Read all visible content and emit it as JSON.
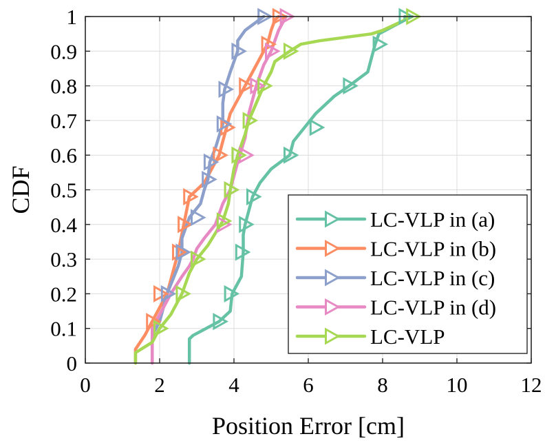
{
  "chart_data": {
    "type": "line",
    "title": "",
    "xlabel": "Position Error [cm]",
    "ylabel": "CDF",
    "xlim": [
      0,
      12
    ],
    "ylim": [
      0,
      1
    ],
    "xticks": [
      0,
      2,
      4,
      6,
      8,
      10,
      12
    ],
    "yticks": [
      0,
      0.1,
      0.2,
      0.3,
      0.4,
      0.5,
      0.6,
      0.7,
      0.8,
      0.9,
      1
    ],
    "xtick_labels": [
      "0",
      "2",
      "4",
      "6",
      "8",
      "10",
      "12"
    ],
    "ytick_labels": [
      "0",
      "0.1",
      "0.2",
      "0.3",
      "0.4",
      "0.5",
      "0.6",
      "0.7",
      "0.8",
      "0.9",
      "1"
    ],
    "grid": true,
    "legend_position": "lower-right",
    "series": [
      {
        "name": "LC-VLP in (a)",
        "color": "#66c2a5",
        "marker": "triangle-right",
        "x": [
          2.8,
          2.8,
          2.9,
          3.6,
          3.9,
          3.95,
          4.2,
          4.25,
          4.25,
          4.3,
          4.4,
          4.5,
          4.7,
          5.0,
          5.5,
          5.6,
          5.9,
          6.2,
          6.3,
          6.7,
          7.1,
          7.6,
          7.8,
          7.9,
          8.6,
          8.6
        ],
        "y": [
          0,
          0.07,
          0.08,
          0.12,
          0.15,
          0.2,
          0.25,
          0.32,
          0.37,
          0.4,
          0.44,
          0.48,
          0.52,
          0.56,
          0.6,
          0.64,
          0.68,
          0.72,
          0.73,
          0.77,
          0.8,
          0.84,
          0.92,
          0.95,
          0.99,
          1.0
        ],
        "markers_x": [
          3.6,
          3.9,
          4.2,
          4.3,
          4.5,
          5.5,
          6.2,
          7.1,
          7.9,
          8.6
        ],
        "markers_y": [
          0.12,
          0.2,
          0.32,
          0.4,
          0.48,
          0.6,
          0.68,
          0.8,
          0.92,
          1.0
        ]
      },
      {
        "name": "LC-VLP in (b)",
        "color": "#fc8d62",
        "marker": "triangle-right",
        "x": [
          1.35,
          1.35,
          1.6,
          1.8,
          2.0,
          2.2,
          2.4,
          2.5,
          2.65,
          2.8,
          3.2,
          3.6,
          3.7,
          3.8,
          3.9,
          4.1,
          4.3,
          4.5,
          4.7,
          4.9,
          5.0,
          5.1,
          5.2
        ],
        "y": [
          0,
          0.04,
          0.08,
          0.12,
          0.16,
          0.2,
          0.28,
          0.32,
          0.4,
          0.48,
          0.52,
          0.6,
          0.64,
          0.68,
          0.72,
          0.76,
          0.8,
          0.84,
          0.88,
          0.92,
          0.96,
          0.99,
          1.0
        ],
        "markers_x": [
          1.8,
          2.0,
          2.5,
          2.65,
          2.8,
          3.6,
          3.8,
          4.3,
          4.9,
          5.2
        ],
        "markers_y": [
          0.12,
          0.2,
          0.32,
          0.4,
          0.48,
          0.6,
          0.68,
          0.8,
          0.92,
          1.0
        ]
      },
      {
        "name": "LC-VLP in (c)",
        "color": "#8da0cb",
        "marker": "triangle-right",
        "x": [
          1.8,
          1.8,
          2.0,
          2.2,
          2.5,
          2.6,
          2.6,
          2.8,
          3.1,
          3.2,
          3.3,
          3.35,
          3.5,
          3.7,
          3.7,
          3.75,
          3.9,
          4.0,
          4.1,
          4.1,
          4.3,
          4.8
        ],
        "y": [
          0,
          0.08,
          0.12,
          0.2,
          0.28,
          0.32,
          0.36,
          0.42,
          0.46,
          0.5,
          0.53,
          0.58,
          0.62,
          0.69,
          0.75,
          0.79,
          0.84,
          0.87,
          0.9,
          0.93,
          0.96,
          1.0
        ],
        "markers_x": [
          2.2,
          2.6,
          3.0,
          3.3,
          3.35,
          3.7,
          3.75,
          4.1,
          4.8
        ],
        "markers_y": [
          0.2,
          0.32,
          0.42,
          0.53,
          0.58,
          0.69,
          0.79,
          0.9,
          1.0
        ]
      },
      {
        "name": "LC-VLP in (d)",
        "color": "#e78ac3",
        "marker": "triangle-right",
        "x": [
          1.8,
          1.8,
          2.0,
          2.3,
          2.6,
          2.8,
          2.9,
          3.0,
          3.2,
          3.5,
          3.7,
          3.9,
          4.1,
          4.3,
          4.4,
          4.5,
          4.6,
          4.8,
          5.0,
          5.2,
          5.4
        ],
        "y": [
          0,
          0.1,
          0.14,
          0.2,
          0.25,
          0.28,
          0.3,
          0.33,
          0.36,
          0.4,
          0.46,
          0.5,
          0.58,
          0.65,
          0.72,
          0.76,
          0.8,
          0.86,
          0.9,
          0.96,
          1.0
        ],
        "markers_x": [
          3.7,
          3.9,
          4.3,
          4.6,
          5.0,
          5.4
        ],
        "markers_y": [
          0.4,
          0.5,
          0.6,
          0.8,
          0.9,
          1.0
        ]
      },
      {
        "name": "LC-VLP",
        "color": "#a6d854",
        "marker": "triangle-right",
        "x": [
          1.35,
          1.35,
          1.8,
          2.0,
          2.3,
          2.6,
          2.8,
          3.0,
          3.3,
          3.7,
          3.85,
          3.9,
          4.0,
          4.1,
          4.3,
          4.4,
          4.6,
          4.8,
          5.0,
          5.1,
          5.5,
          5.8,
          6.3,
          7.0,
          7.7,
          8.0,
          8.6,
          8.8
        ],
        "y": [
          0,
          0.03,
          0.06,
          0.1,
          0.14,
          0.2,
          0.26,
          0.3,
          0.34,
          0.41,
          0.46,
          0.5,
          0.56,
          0.6,
          0.66,
          0.7,
          0.75,
          0.8,
          0.84,
          0.87,
          0.9,
          0.92,
          0.93,
          0.94,
          0.95,
          0.96,
          0.99,
          1.0
        ],
        "markers_x": [
          2.0,
          2.6,
          3.0,
          3.7,
          3.9,
          4.1,
          4.4,
          4.8,
          5.5,
          8.8
        ],
        "markers_y": [
          0.1,
          0.2,
          0.3,
          0.41,
          0.5,
          0.6,
          0.7,
          0.8,
          0.9,
          1.0
        ]
      }
    ]
  }
}
